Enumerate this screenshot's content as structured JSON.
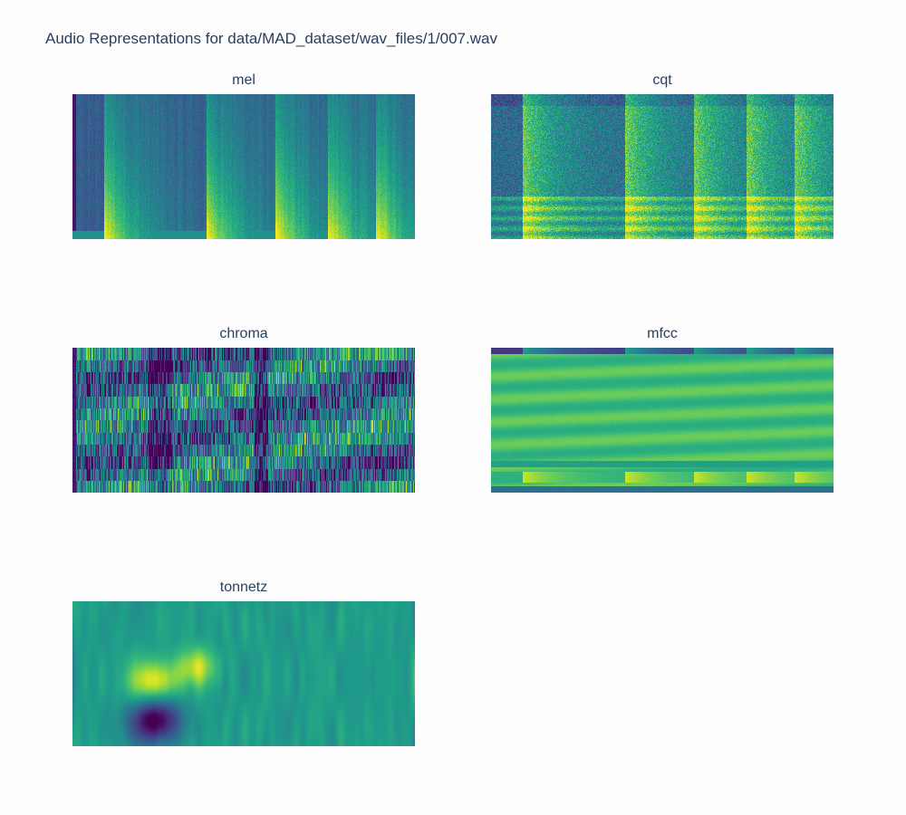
{
  "title": "Audio Representations for data/MAD_dataset/wav_files/1/007.wav",
  "chart_data": [
    {
      "type": "heatmap",
      "title": "mel",
      "colorscale": "viridis",
      "axes_visible": false
    },
    {
      "type": "heatmap",
      "title": "cqt",
      "colorscale": "viridis",
      "axes_visible": false
    },
    {
      "type": "heatmap",
      "title": "chroma",
      "colorscale": "viridis",
      "axes_visible": false
    },
    {
      "type": "heatmap",
      "title": "mfcc",
      "colorscale": "viridis",
      "axes_visible": false
    },
    {
      "type": "heatmap",
      "title": "tonnetz",
      "colorscale": "viridis",
      "axes_visible": false
    }
  ]
}
